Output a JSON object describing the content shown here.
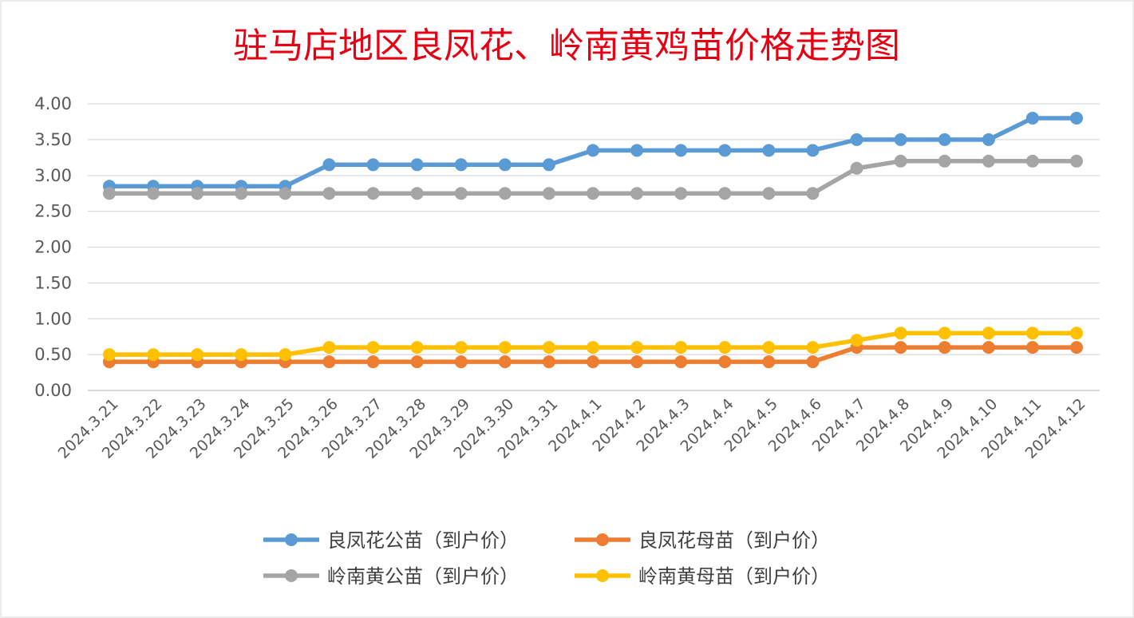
{
  "chart_data": {
    "type": "line",
    "title": "驻马店地区良凤花、岭南黄鸡苗价格走势图",
    "xlabel": "",
    "ylabel": "",
    "ylim": [
      0,
      4
    ],
    "yticks": [
      "4.00",
      "3.50",
      "3.00",
      "2.50",
      "2.00",
      "1.50",
      "1.00",
      "0.50",
      "0.00"
    ],
    "categories": [
      "2024.3.21",
      "2024.3.22",
      "2024.3.23",
      "2024.3.24",
      "2024.3.25",
      "2024.3.26",
      "2024.3.27",
      "2024.3.28",
      "2024.3.29",
      "2024.3.30",
      "2024.3.31",
      "2024.4.1",
      "2024.4.2",
      "2024.4.3",
      "2024.4.4",
      "2024.4.5",
      "2024.4.6",
      "2024.4.7",
      "2024.4.8",
      "2024.4.9",
      "2024.4.10",
      "2024.4.11",
      "2024.4.12"
    ],
    "grid": true,
    "legend": "bottom",
    "series": [
      {
        "name": "良凤花公苗（到户价）",
        "color": "#5b9bd5",
        "values": [
          2.85,
          2.85,
          2.85,
          2.85,
          2.85,
          3.15,
          3.15,
          3.15,
          3.15,
          3.15,
          3.15,
          3.35,
          3.35,
          3.35,
          3.35,
          3.35,
          3.35,
          3.5,
          3.5,
          3.5,
          3.5,
          3.8,
          3.8
        ]
      },
      {
        "name": "良凤花母苗（到户价）",
        "color": "#ed7d31",
        "values": [
          0.4,
          0.4,
          0.4,
          0.4,
          0.4,
          0.4,
          0.4,
          0.4,
          0.4,
          0.4,
          0.4,
          0.4,
          0.4,
          0.4,
          0.4,
          0.4,
          0.4,
          0.6,
          0.6,
          0.6,
          0.6,
          0.6,
          0.6
        ]
      },
      {
        "name": "岭南黄公苗（到户价）",
        "color": "#a5a5a5",
        "values": [
          2.75,
          2.75,
          2.75,
          2.75,
          2.75,
          2.75,
          2.75,
          2.75,
          2.75,
          2.75,
          2.75,
          2.75,
          2.75,
          2.75,
          2.75,
          2.75,
          2.75,
          3.1,
          3.2,
          3.2,
          3.2,
          3.2,
          3.2
        ]
      },
      {
        "name": "岭南黄母苗（到户价）",
        "color": "#ffc000",
        "values": [
          0.5,
          0.5,
          0.5,
          0.5,
          0.5,
          0.6,
          0.6,
          0.6,
          0.6,
          0.6,
          0.6,
          0.6,
          0.6,
          0.6,
          0.6,
          0.6,
          0.6,
          0.7,
          0.8,
          0.8,
          0.8,
          0.8,
          0.8
        ]
      }
    ]
  }
}
